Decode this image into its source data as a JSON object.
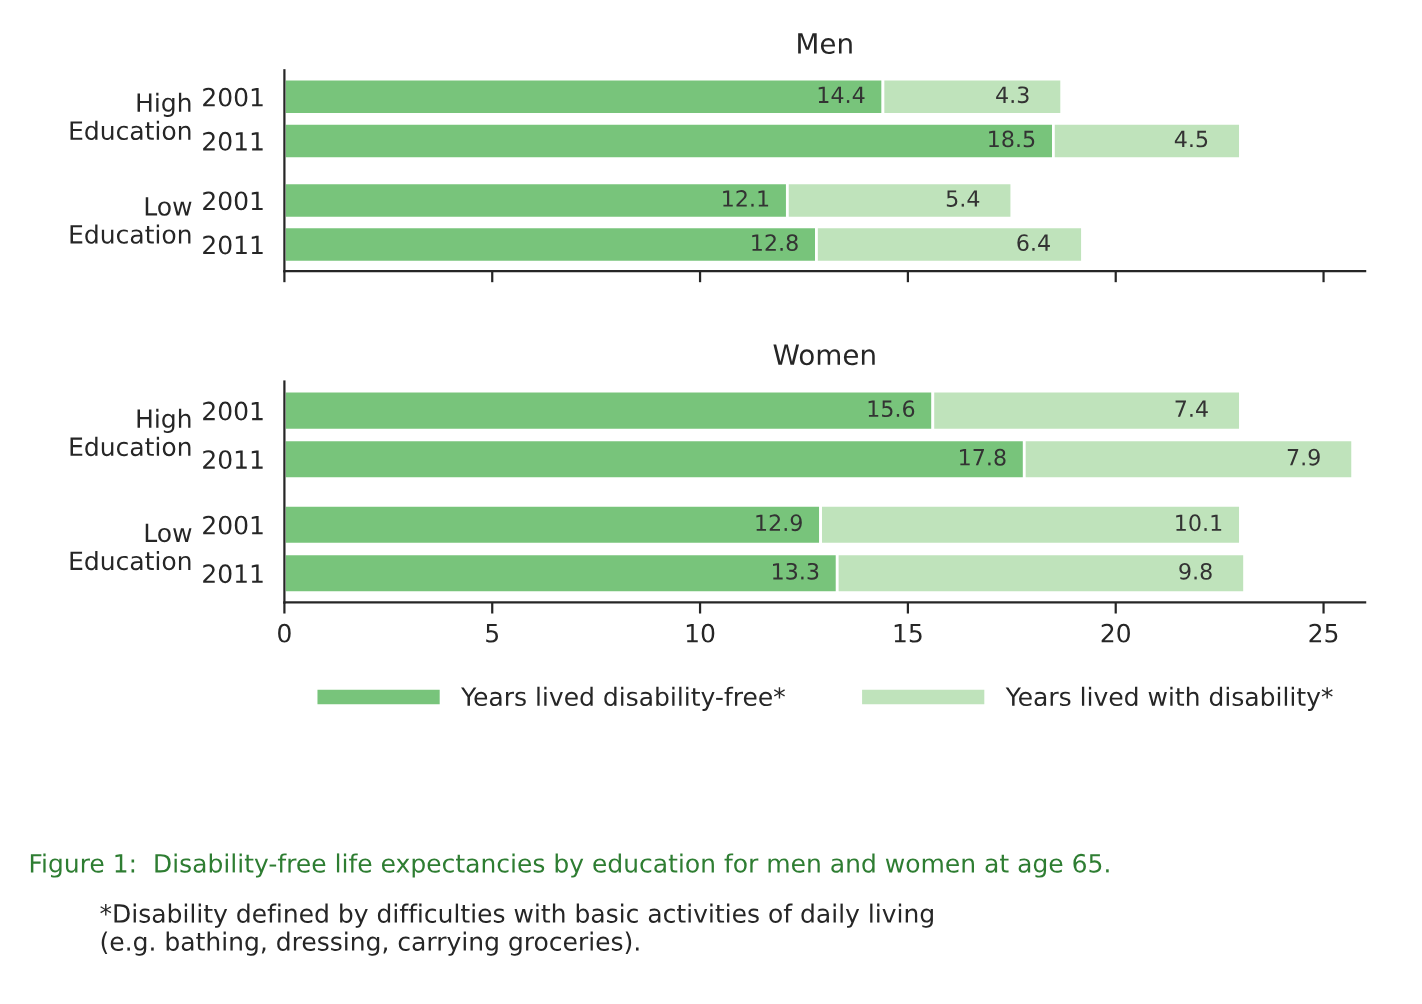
{
  "chart_data": [
    {
      "type": "bar",
      "title": "Men",
      "orientation": "horizontal",
      "stacked": true,
      "data_labels": true,
      "categories": [
        "2001",
        "2011",
        "2001",
        "2011"
      ],
      "annotations": [
        "High\nEducation",
        "Low\nEducation"
      ],
      "series": [
        {
          "color": "#78c47b",
          "values": [
            14.4,
            18.5,
            12.1,
            12.8
          ]
        },
        {
          "color": "#bfe3bb",
          "values": [
            4.3,
            4.5,
            5.4,
            6.4
          ]
        }
      ],
      "xlim": [
        0,
        26
      ],
      "xticks": [
        0,
        5,
        10,
        15,
        20,
        25
      ],
      "tick_labels": "y",
      "grid": false,
      "legend": false
    },
    {
      "type": "bar",
      "title": "Women",
      "orientation": "horizontal",
      "stacked": true,
      "data_labels": true,
      "categories": [
        "2001",
        "2011",
        "2001",
        "2011"
      ],
      "annotations": [
        "High\nEducation",
        "Low\nEducation",
        "Figure 1:  Disability-free life expectancies by education for men and women at age 65.",
        "*Disability defined by difficulties with basic activities of daily living\n(e.g. bathing, dressing, carrying groceries)."
      ],
      "series": [
        {
          "name": "Years lived disability-free*",
          "color": "#78c47b",
          "values": [
            15.6,
            17.8,
            12.9,
            13.3
          ]
        },
        {
          "name": "Years lived with disability*",
          "color": "#bfe3bb",
          "values": [
            7.4,
            7.9,
            10.1,
            9.8
          ]
        }
      ],
      "xlim": [
        0,
        26
      ],
      "xticks": [
        0,
        5,
        10,
        15,
        20,
        25
      ],
      "grid": false,
      "legend": "bottom"
    }
  ]
}
